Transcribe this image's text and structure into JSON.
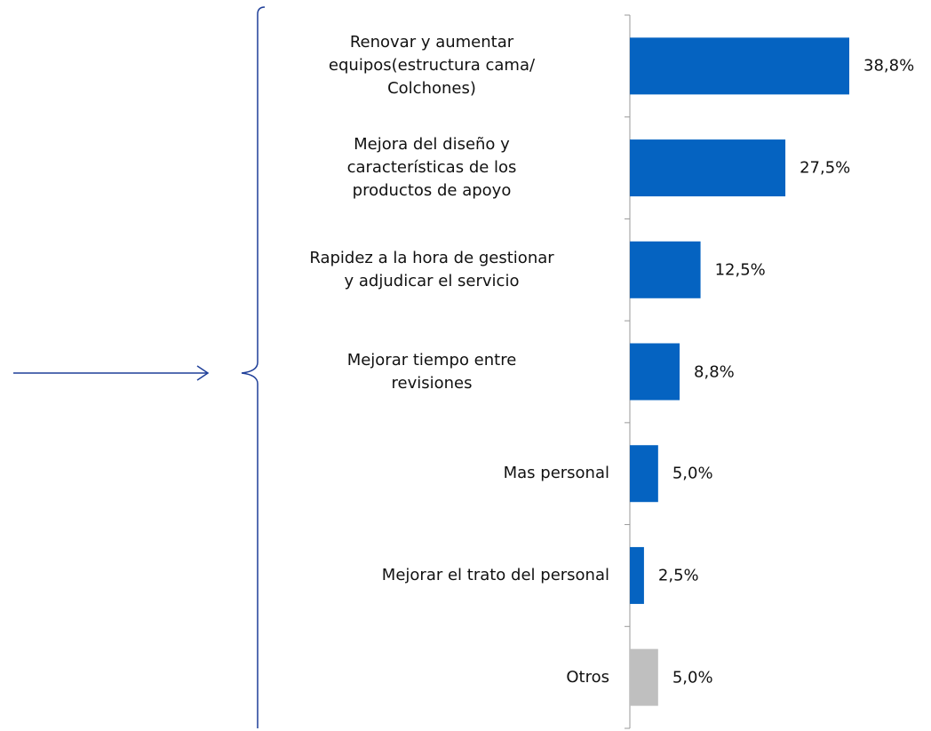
{
  "chart_data": {
    "type": "barh",
    "categories": [
      "Renovar y aumentar\nequipos(estructura cama/\nColchones)",
      "Mejora del diseño y\ncaracterísticas de los\nproductos de apoyo",
      "Rapidez a la hora de gestionar\ny adjudicar el servicio",
      "Mejorar tiempo entre\nrevisiones",
      "Mas personal",
      "Mejorar el trato del personal",
      "Otros"
    ],
    "values": [
      38.8,
      27.5,
      12.5,
      8.8,
      5.0,
      2.5,
      5.0
    ],
    "value_labels": [
      "38,8%",
      "27,5%",
      "12,5%",
      "8,8%",
      "5,0%",
      "2,5%",
      "5,0%"
    ],
    "colors": [
      "#0563c1",
      "#0563c1",
      "#0563c1",
      "#0563c1",
      "#0563c1",
      "#0563c1",
      "#bfbfbf"
    ]
  }
}
